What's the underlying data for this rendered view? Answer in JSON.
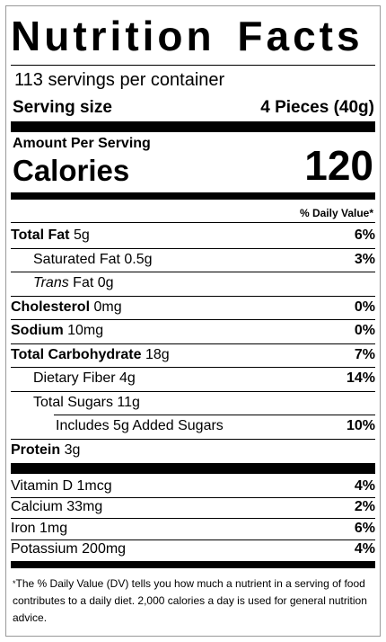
{
  "title": "Nutrition Facts",
  "servings": "113 servings per container",
  "serving_size": {
    "label": "Serving size",
    "value": "4 Pieces (40g)"
  },
  "amount_per_serving": "Amount Per Serving",
  "calories": {
    "label": "Calories",
    "value": "120"
  },
  "daily_value_header": "% Daily Value*",
  "nutrients": [
    {
      "label": "Total Fat",
      "amount": "5g",
      "dv": "6%",
      "sub": [
        {
          "label": "Saturated Fat",
          "amount": "0.5g",
          "dv": "3%"
        },
        {
          "italic": "Trans",
          "label": "Fat",
          "amount": "0g"
        }
      ]
    },
    {
      "label": "Cholesterol",
      "amount": "0mg",
      "dv": "0%"
    },
    {
      "label": "Sodium",
      "amount": "10mg",
      "dv": "0%"
    },
    {
      "label": "Total Carbohydrate",
      "amount": "18g",
      "dv": "7%",
      "sub": [
        {
          "label": "Dietary Fiber",
          "amount": "4g",
          "dv": "14%"
        },
        {
          "label": "Total Sugars",
          "amount": "11g",
          "sub": [
            {
              "label": "Includes 5g Added Sugars",
              "dv": "10%"
            }
          ]
        }
      ]
    },
    {
      "label": "Protein",
      "amount": "3g"
    }
  ],
  "vitamins": [
    {
      "label": "Vitamin D",
      "amount": "1mcg",
      "dv": "4%"
    },
    {
      "label": "Calcium",
      "amount": "33mg",
      "dv": "2%"
    },
    {
      "label": "Iron",
      "amount": "1mg",
      "dv": "6%"
    },
    {
      "label": "Potassium",
      "amount": "200mg",
      "dv": "4%"
    }
  ],
  "footnote": {
    "marker": "*",
    "text": "The % Daily Value (DV) tells you how much a nutrient in a serving of food contributes to a daily diet. 2,000 calories a day is used for general nutrition advice."
  }
}
